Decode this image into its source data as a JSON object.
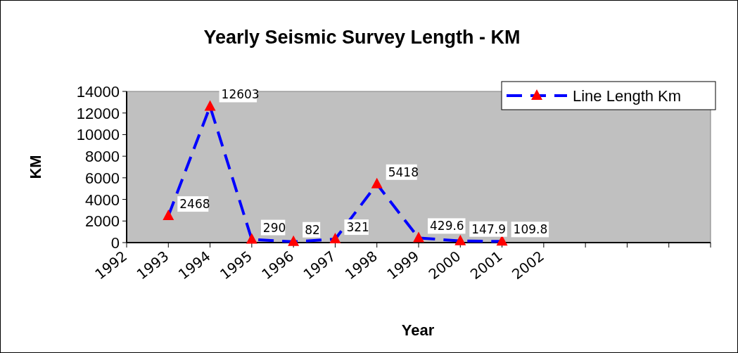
{
  "chart_data": {
    "type": "line",
    "title": "Yearly Seismic Survey Length - KM",
    "xlabel": "Year",
    "ylabel": "KM",
    "categories": [
      "1992",
      "1993",
      "1994",
      "1995",
      "1996",
      "1997",
      "1998",
      "1999",
      "2000",
      "2001",
      "2002",
      null,
      null,
      null,
      null
    ],
    "series": [
      {
        "name": "Line Length Km",
        "color": "#0000ff",
        "values": [
          null,
          2468,
          12603,
          290,
          82,
          321,
          5418,
          429.6,
          147.9,
          109.8,
          null,
          null,
          null,
          null,
          null
        ],
        "colors": [
          null,
          "#ff0000",
          "#ff0000",
          "#ff0000",
          "#ff0000",
          "#ff0000",
          "#ff0000",
          "#ff0000",
          "#ff0000",
          "#ff0000",
          null,
          null,
          null,
          null,
          null
        ]
      }
    ],
    "ylim": [
      0,
      14000
    ],
    "yticks": [
      0,
      2000,
      4000,
      6000,
      8000,
      10000,
      12000,
      14000
    ],
    "grid": false,
    "legend": "top right",
    "marker": "triangle",
    "line_style": "dashed",
    "data_labels": true
  }
}
